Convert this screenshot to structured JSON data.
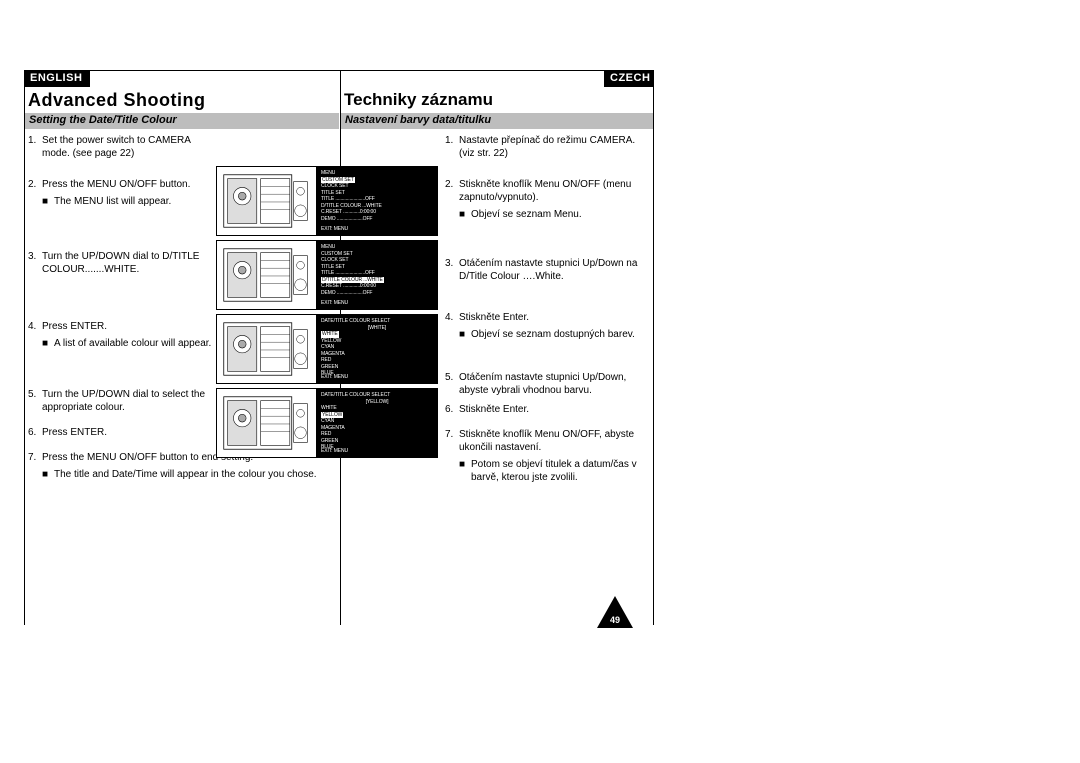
{
  "lang_labels": {
    "left": "ENGLISH",
    "right": "CZECH"
  },
  "titles": {
    "left": "Advanced Shooting",
    "right": "Techniky záznamu"
  },
  "subtitles": {
    "left": "Setting the Date/Title Colour",
    "right": "Nastavení barvy data/titulku"
  },
  "left_col": {
    "s1": "Set the power switch to CAMERA mode. (see page 22)",
    "s2": "Press the MENU ON/OFF button.",
    "s2b": "The MENU list will appear.",
    "s3": "Turn the UP/DOWN dial to D/TITLE COLOUR.......WHITE.",
    "s4": "Press ENTER.",
    "s4b": "A list of available colour will appear.",
    "s5": "Turn the UP/DOWN dial to select the appropriate colour.",
    "s6": "Press ENTER.",
    "s7": "Press the MENU ON/OFF button to end setting.",
    "s7b": "The title and Date/Time will appear in the colour you chose."
  },
  "right_col": {
    "s1": "Nastavte přepínač do režimu CAMERA. (viz str. 22)",
    "s2": "Stiskněte knoflík Menu ON/OFF (menu zapnuto/vypnuto).",
    "s2b": "Objeví se seznam Menu.",
    "s3": "Otáčením nastavte stupnici Up/Down na D/Title Colour ….White.",
    "s4": "Stiskněte Enter.",
    "s4b": "Objeví se seznam dostupných barev.",
    "s5": "Otáčením nastavte stupnici Up/Down, abyste vybrali vhodnou barvu.",
    "s6": "Stiskněte Enter.",
    "s7": "Stiskněte knoflík Menu ON/OFF, abyste ukončili nastavení.",
    "s7b": "Potom se objeví titulek a datum/čas v  barvě, kterou jste zvolili."
  },
  "menus": {
    "menu_header": "MENU",
    "exit": "EXIT: MENU",
    "menu1": {
      "lines": [
        "CUSTOM SET",
        "CLOCK SET",
        "TITLE SET",
        "TITLE .......................OFF",
        "D/TITLE COLOUR ...WHITE",
        "C.RESET .............0:00:00",
        "DEMO ....................OFF"
      ],
      "hl": 0
    },
    "menu2": {
      "lines": [
        "CUSTOM SET",
        "CLOCK SET",
        "TITLE SET",
        "TITLE .......................OFF",
        "D/TITLE COLOUR ...WHITE",
        "C.RESET .............0:00:00",
        "DEMO ....................OFF"
      ],
      "hl": 4
    },
    "menu3": {
      "header": "DATE/TITLE COLOUR SELECT",
      "sel": "WHITE",
      "lines": [
        "WHITE",
        "YELLOW",
        "CYAN",
        "MAGENTA",
        "RED",
        "GREEN",
        "BLUE"
      ],
      "hl": 0
    },
    "menu4": {
      "header": "DATE/TITLE COLOUR SELECT",
      "sel": "YELLOW",
      "lines": [
        "WHITE",
        "YELLOW",
        "CYAN",
        "MAGENTA",
        "RED",
        "GREEN",
        "BLUE"
      ],
      "hl": 1
    }
  },
  "page_number": "49"
}
